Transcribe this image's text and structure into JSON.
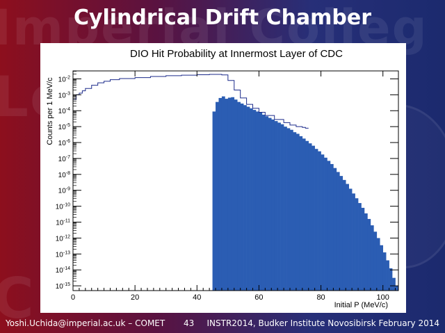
{
  "slide": {
    "title": "Cylindrical Drift Chamber",
    "footer": {
      "author": "Yoshi.Uchida@imperial.ac.uk – COMET",
      "page": "43",
      "conference": "INSTR2014, Budker Institute Novosibirsk February 2014"
    },
    "colors": {
      "fill": "#2b5db3",
      "outline": "#1b2a8a"
    }
  },
  "chart_data": {
    "type": "area",
    "title": "DIO Hit Probability at Innermost Layer of CDC",
    "xlabel": "Initial P (MeV/c)",
    "ylabel": "Counts per 1 MeV/c",
    "xlim": [
      0,
      105
    ],
    "ylim_log10": [
      -15.3,
      -1.5
    ],
    "y_scale": "log",
    "x_ticks": [
      0,
      20,
      40,
      60,
      80,
      100
    ],
    "y_tick_exponents": [
      -2,
      -3,
      -4,
      -5,
      -6,
      -7,
      -8,
      -9,
      -10,
      -11,
      -12,
      -13,
      -14,
      -15
    ],
    "y_tick_labels": [
      "10-2",
      "10-3",
      "10-4",
      "10-5",
      "10-6",
      "10-7",
      "10-8",
      "10-9",
      "10-10",
      "10-11",
      "10-12",
      "10-13",
      "10-14",
      "10-15"
    ],
    "grid": false,
    "series": [
      {
        "style": "outline",
        "x": [
          0,
          1,
          2,
          3,
          4,
          6,
          8,
          10,
          12,
          15,
          20,
          25,
          30,
          35,
          40,
          44,
          46,
          48,
          50,
          52,
          54,
          56,
          58,
          60,
          62,
          65,
          68,
          70,
          72,
          74,
          75
        ],
        "y_log10": [
          -3.3,
          -3.0,
          -2.9,
          -2.75,
          -2.6,
          -2.4,
          -2.25,
          -2.15,
          -2.05,
          -1.98,
          -1.92,
          -1.85,
          -1.8,
          -1.77,
          -1.74,
          -1.72,
          -1.72,
          -1.75,
          -2.1,
          -2.7,
          -3.2,
          -3.6,
          -3.85,
          -4.1,
          -4.3,
          -4.55,
          -4.75,
          -4.9,
          -5.0,
          -5.05,
          -5.1
        ]
      },
      {
        "style": "filled",
        "x": [
          45,
          46,
          47,
          48,
          49,
          50,
          51,
          52,
          53,
          54,
          55,
          56,
          57,
          58,
          59,
          60,
          61,
          62,
          63,
          64,
          65,
          66,
          67,
          68,
          69,
          70,
          71,
          72,
          73,
          74,
          75,
          76,
          77,
          78,
          79,
          80,
          81,
          82,
          83,
          84,
          85,
          86,
          87,
          88,
          89,
          90,
          91,
          92,
          93,
          94,
          95,
          96,
          97,
          98,
          99,
          100,
          101,
          102,
          103,
          104
        ],
        "y_log10": [
          -4.05,
          -3.45,
          -3.2,
          -3.1,
          -3.25,
          -3.18,
          -3.15,
          -3.3,
          -3.45,
          -3.55,
          -3.65,
          -3.75,
          -3.85,
          -3.95,
          -4.05,
          -4.12,
          -4.25,
          -4.35,
          -4.45,
          -4.55,
          -4.65,
          -4.75,
          -4.85,
          -5.0,
          -5.1,
          -5.2,
          -5.35,
          -5.45,
          -5.6,
          -5.75,
          -5.9,
          -6.05,
          -6.2,
          -6.4,
          -6.55,
          -6.75,
          -6.95,
          -7.15,
          -7.35,
          -7.6,
          -7.85,
          -8.1,
          -8.35,
          -8.6,
          -8.9,
          -9.2,
          -9.5,
          -9.8,
          -10.1,
          -10.45,
          -10.8,
          -11.2,
          -11.6,
          -12.0,
          -12.45,
          -12.9,
          -13.4,
          -13.9,
          -14.5,
          -15.0
        ]
      }
    ]
  }
}
